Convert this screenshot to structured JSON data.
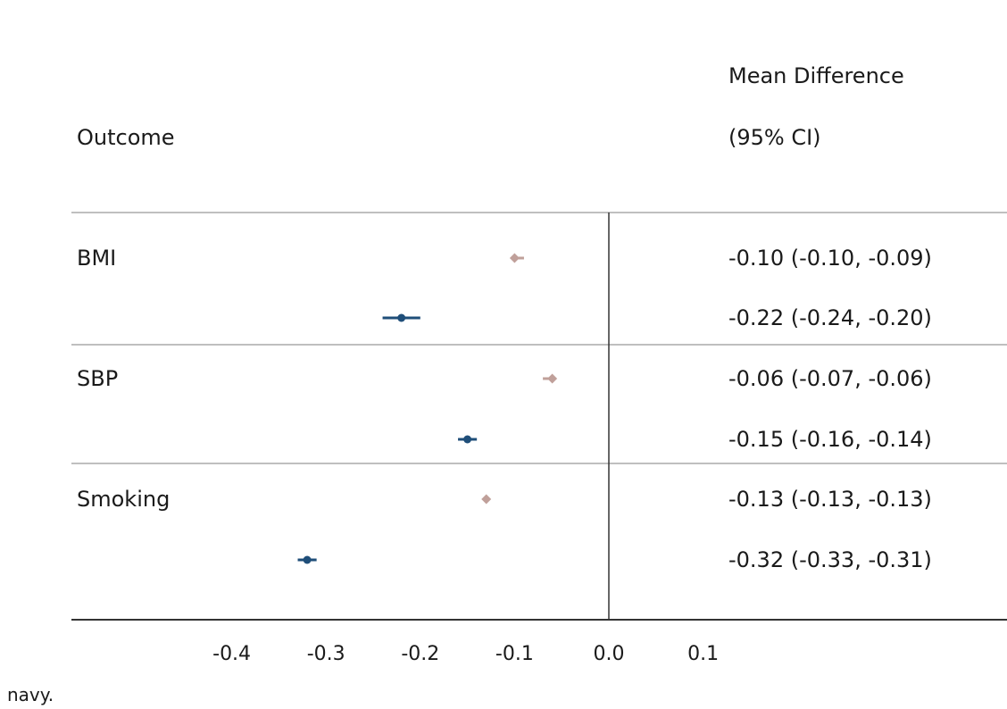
{
  "chart_data": {
    "type": "forest",
    "header": {
      "outcome_label": "Outcome",
      "effect_label_line1": "Mean Difference",
      "effect_label_line2": "(95% CI)"
    },
    "xlim": [
      -0.6,
      0.4
    ],
    "ticks": [
      "-0.4",
      "-0.3",
      "-0.2",
      "-0.1",
      "0.0",
      "0.1"
    ],
    "tick_values": [
      -0.4,
      -0.3,
      -0.2,
      -0.1,
      0.0,
      0.1
    ],
    "reference_line": 0.0,
    "marker_styles": {
      "diamond": {
        "color": "#c0a09a"
      },
      "dot": {
        "color": "#1f4e79"
      }
    },
    "groups": [
      {
        "outcome": "BMI",
        "rows": [
          {
            "estimate": -0.1,
            "lower": -0.1,
            "upper": -0.09,
            "marker": "diamond",
            "text": "-0.10 (-0.10, -0.09)"
          },
          {
            "estimate": -0.22,
            "lower": -0.24,
            "upper": -0.2,
            "marker": "dot",
            "text": "-0.22 (-0.24, -0.20)"
          }
        ]
      },
      {
        "outcome": "SBP",
        "rows": [
          {
            "estimate": -0.06,
            "lower": -0.07,
            "upper": -0.06,
            "marker": "diamond",
            "text": "-0.06 (-0.07, -0.06)"
          },
          {
            "estimate": -0.15,
            "lower": -0.16,
            "upper": -0.14,
            "marker": "dot",
            "text": "-0.15 (-0.16, -0.14)"
          }
        ]
      },
      {
        "outcome": "Smoking",
        "rows": [
          {
            "estimate": -0.13,
            "lower": -0.13,
            "upper": -0.13,
            "marker": "diamond",
            "text": "-0.13 (-0.13, -0.13)"
          },
          {
            "estimate": -0.32,
            "lower": -0.33,
            "upper": -0.31,
            "marker": "dot",
            "text": "-0.32 (-0.33, -0.31)"
          }
        ]
      }
    ]
  },
  "caption": "navy."
}
